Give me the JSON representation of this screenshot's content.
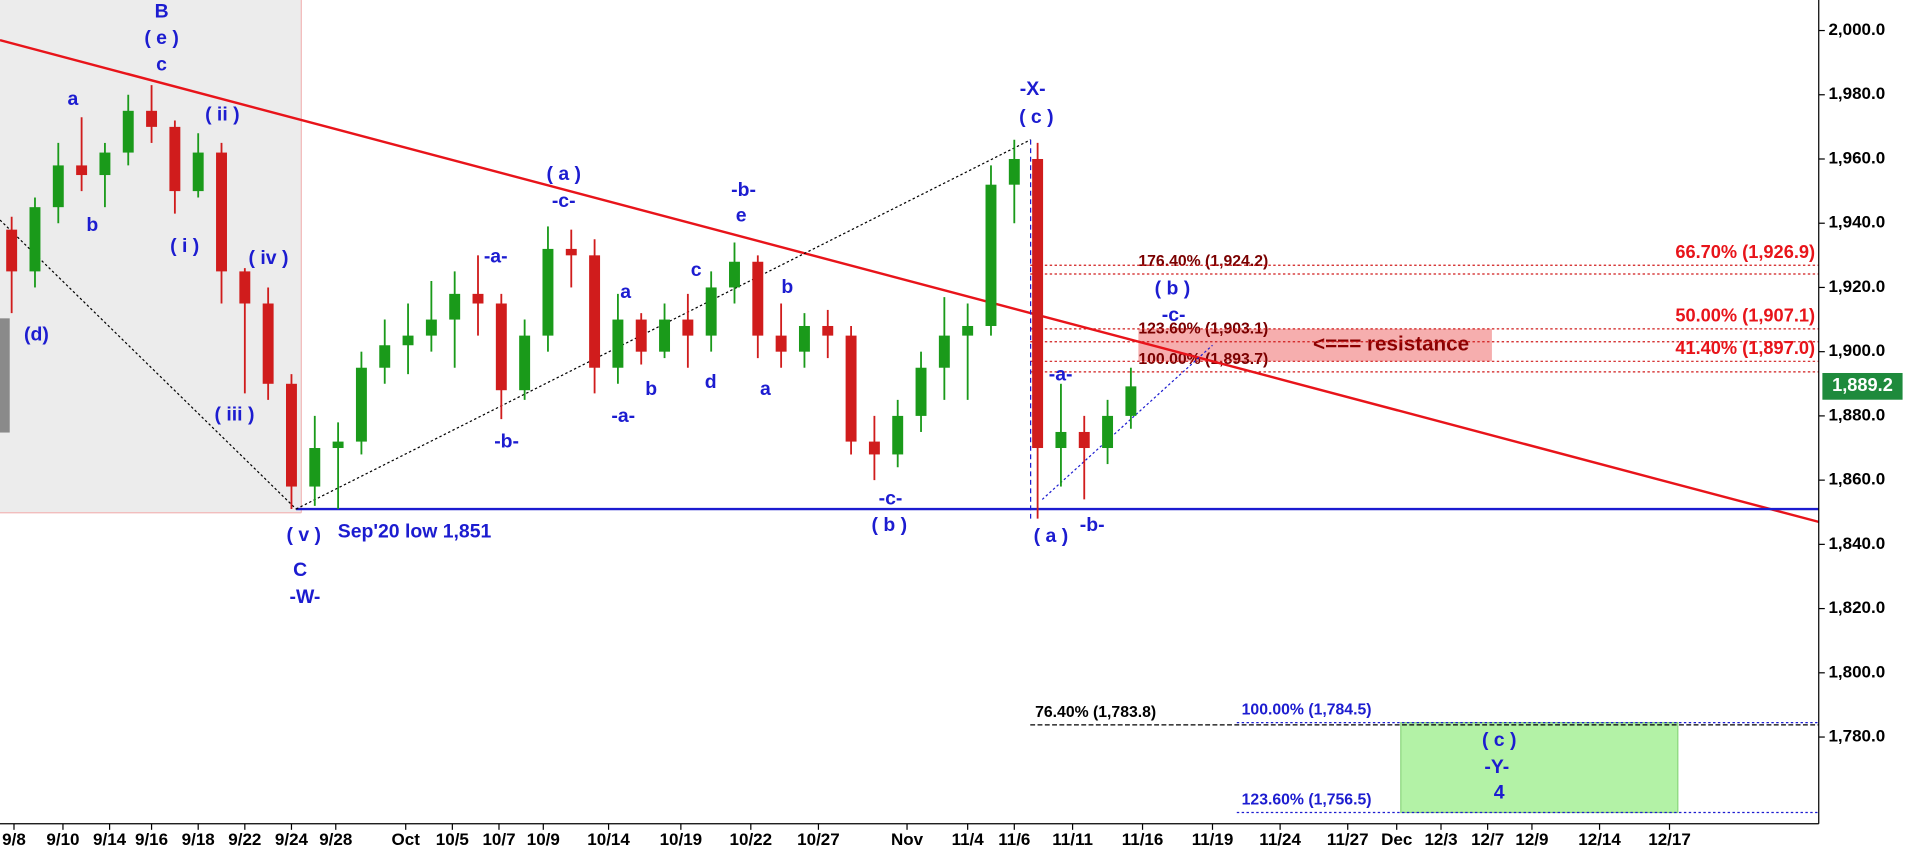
{
  "chart_data": {
    "type": "candlestick",
    "xlim": [
      0,
      78
    ],
    "ylim": [
      1753,
      2009.5
    ],
    "yticks": [
      {
        "value": 1780,
        "label": "1,780.0"
      },
      {
        "value": 1800,
        "label": "1,800.0"
      },
      {
        "value": 1820,
        "label": "1,820.0"
      },
      {
        "value": 1840,
        "label": "1,840.0"
      },
      {
        "value": 1860,
        "label": "1,860.0"
      },
      {
        "value": 1880,
        "label": "1,880.0"
      },
      {
        "value": 1900,
        "label": "1,900.0"
      },
      {
        "value": 1920,
        "label": "1,920.0"
      },
      {
        "value": 1940,
        "label": "1,940.0"
      },
      {
        "value": 1960,
        "label": "1,960.0"
      },
      {
        "value": 1980,
        "label": "1,980.0"
      },
      {
        "value": 2000,
        "label": "2,000.0"
      }
    ],
    "xticks": [
      {
        "value": 0.6,
        "label": "9/8"
      },
      {
        "value": 2.7,
        "label": "9/10"
      },
      {
        "value": 4.7,
        "label": "9/14"
      },
      {
        "value": 6.5,
        "label": "9/16"
      },
      {
        "value": 8.5,
        "label": "9/18"
      },
      {
        "value": 10.5,
        "label": "9/22"
      },
      {
        "value": 12.5,
        "label": "9/24"
      },
      {
        "value": 14.4,
        "label": "9/28"
      },
      {
        "value": 17.4,
        "label": "Oct"
      },
      {
        "value": 19.4,
        "label": "10/5"
      },
      {
        "value": 21.4,
        "label": "10/7"
      },
      {
        "value": 23.3,
        "label": "10/9"
      },
      {
        "value": 26.1,
        "label": "10/14"
      },
      {
        "value": 29.2,
        "label": "10/19"
      },
      {
        "value": 32.2,
        "label": "10/22"
      },
      {
        "value": 35.1,
        "label": "10/27"
      },
      {
        "value": 38.9,
        "label": "Nov"
      },
      {
        "value": 41.5,
        "label": "11/4"
      },
      {
        "value": 43.5,
        "label": "11/6"
      },
      {
        "value": 46,
        "label": "11/11"
      },
      {
        "value": 49,
        "label": "11/16"
      },
      {
        "value": 52,
        "label": "11/19"
      },
      {
        "value": 54.9,
        "label": "11/24"
      },
      {
        "value": 57.8,
        "label": "11/27"
      },
      {
        "value": 59.9,
        "label": "Dec"
      },
      {
        "value": 61.8,
        "label": "12/3"
      },
      {
        "value": 63.8,
        "label": "12/7"
      },
      {
        "value": 65.7,
        "label": "12/9"
      },
      {
        "value": 68.6,
        "label": "12/14"
      },
      {
        "value": 71.6,
        "label": "12/17"
      }
    ],
    "candles": {
      "up_color": "#1a9a1a",
      "down_color": "#d01c1c",
      "x": [
        0.5,
        1.5,
        2.5,
        3.5,
        4.5,
        5.5,
        6.5,
        7.5,
        8.5,
        9.5,
        10.5,
        11.5,
        12.5,
        13.5,
        14.5,
        15.5,
        16.5,
        17.5,
        18.5,
        19.5,
        20.5,
        21.5,
        22.5,
        23.5,
        24.5,
        25.5,
        26.5,
        27.5,
        28.5,
        29.5,
        30.5,
        31.5,
        32.5,
        33.5,
        34.5,
        35.5,
        36.5,
        37.5,
        38.5,
        39.5,
        40.5,
        41.5,
        42.5,
        43.5,
        44.5,
        45.5,
        46.5,
        47.5,
        48.5
      ],
      "open": [
        1938,
        1925,
        1945,
        1958,
        1955,
        1962,
        1975,
        1970,
        1950,
        1962,
        1925,
        1915,
        1890,
        1858,
        1870,
        1872,
        1895,
        1902,
        1905,
        1910,
        1918,
        1915,
        1888,
        1905,
        1932,
        1930,
        1895,
        1910,
        1900,
        1910,
        1905,
        1920,
        1928,
        1905,
        1900,
        1908,
        1905,
        1872,
        1868,
        1880,
        1895,
        1905,
        1908,
        1952,
        1960,
        1870,
        1875,
        1870,
        1880
      ],
      "high": [
        1942,
        1948,
        1965,
        1973,
        1965,
        1980,
        1983,
        1972,
        1968,
        1965,
        1926,
        1920,
        1893,
        1880,
        1878,
        1900,
        1910,
        1915,
        1922,
        1925,
        1930,
        1918,
        1910,
        1939,
        1938,
        1935,
        1918,
        1912,
        1915,
        1918,
        1925,
        1934,
        1930,
        1915,
        1912,
        1913,
        1908,
        1880,
        1885,
        1900,
        1917,
        1915,
        1958,
        1966,
        1965,
        1890,
        1880,
        1885,
        1895
      ],
      "low": [
        1912,
        1920,
        1940,
        1950,
        1945,
        1958,
        1965,
        1943,
        1948,
        1915,
        1887,
        1885,
        1851,
        1852,
        1851,
        1868,
        1890,
        1893,
        1900,
        1895,
        1905,
        1879,
        1885,
        1900,
        1920,
        1887,
        1890,
        1896,
        1898,
        1895,
        1900,
        1915,
        1898,
        1895,
        1895,
        1898,
        1868,
        1860,
        1864,
        1875,
        1885,
        1885,
        1905,
        1940,
        1848,
        1858,
        1854,
        1865,
        1876
      ],
      "close": [
        1925,
        1945,
        1958,
        1955,
        1962,
        1975,
        1970,
        1950,
        1962,
        1925,
        1915,
        1890,
        1858,
        1870,
        1872,
        1895,
        1902,
        1905,
        1910,
        1918,
        1915,
        1888,
        1905,
        1932,
        1930,
        1895,
        1910,
        1900,
        1910,
        1905,
        1920,
        1928,
        1905,
        1900,
        1908,
        1905,
        1872,
        1868,
        1880,
        1895,
        1905,
        1908,
        1952,
        1960,
        1870,
        1875,
        1870,
        1880,
        1889.2
      ]
    },
    "last_value_label": "1,889.2",
    "trendlines": [
      {
        "x": [
          0,
          78
        ],
        "values": [
          1997,
          1847
        ],
        "color": "#e8141a",
        "style": "solid"
      },
      {
        "x": [
          12.7,
          78
        ],
        "values": [
          1851,
          1851
        ],
        "color": "#1c1cd0",
        "style": "solid"
      },
      {
        "x": [
          0,
          12.7
        ],
        "values": [
          1941,
          1851
        ],
        "color": "#000000",
        "style": "dotted"
      },
      {
        "x": [
          12.7,
          44.2
        ],
        "values": [
          1851,
          1966
        ],
        "color": "#000000",
        "style": "dotted"
      },
      {
        "x": [
          44.2,
          44.2
        ],
        "values": [
          1966,
          1848
        ],
        "color": "#1c1cd0",
        "style": "dashed"
      },
      {
        "x": [
          44.7,
          52
        ],
        "values": [
          1854,
          1902
        ],
        "color": "#1c1cd0",
        "style": "dotted"
      }
    ],
    "fib_left": [
      {
        "label": "176.40% (1,924.2)",
        "value": 1924.2
      },
      {
        "label": "123.60% (1,903.1)",
        "value": 1903.1
      },
      {
        "label": "100.00% (1,893.7)",
        "value": 1893.7
      }
    ],
    "fib_right": [
      {
        "label": "66.70% (1,926.9)",
        "value": 1926.9
      },
      {
        "label": "50.00% (1,907.1)",
        "value": 1907.1
      },
      {
        "label": "41.40% (1,897.0)",
        "value": 1897.0
      }
    ],
    "resistance_label": "<=== resistance",
    "targets": [
      {
        "label": "76.40% (1,783.8)",
        "value": 1783.8,
        "color": "#000000"
      },
      {
        "label": "100.00% (1,784.5)",
        "value": 1784.5,
        "color": "#1c1cd0"
      },
      {
        "label": "123.60% (1,756.5)",
        "value": 1756.5,
        "color": "#1c1cd0"
      }
    ],
    "annotations": [
      "B",
      "( e )",
      "c",
      "a",
      "b",
      "( ii )",
      "( i )",
      "( iv )",
      "( iii )",
      "(d)",
      "( v )",
      "C",
      "-W-",
      "Sep'20 low 1,851",
      "-a-",
      "-b-",
      "( a )",
      "-c-",
      "a",
      "-a-",
      "b",
      "c",
      "d",
      "-b-",
      "e",
      "b",
      "a",
      "-c-",
      "( b )",
      "-X-",
      "( c )",
      "-a-",
      "( a )",
      "-b-",
      "-c-",
      "( b )",
      "( c )",
      "-Y-",
      "4"
    ]
  }
}
